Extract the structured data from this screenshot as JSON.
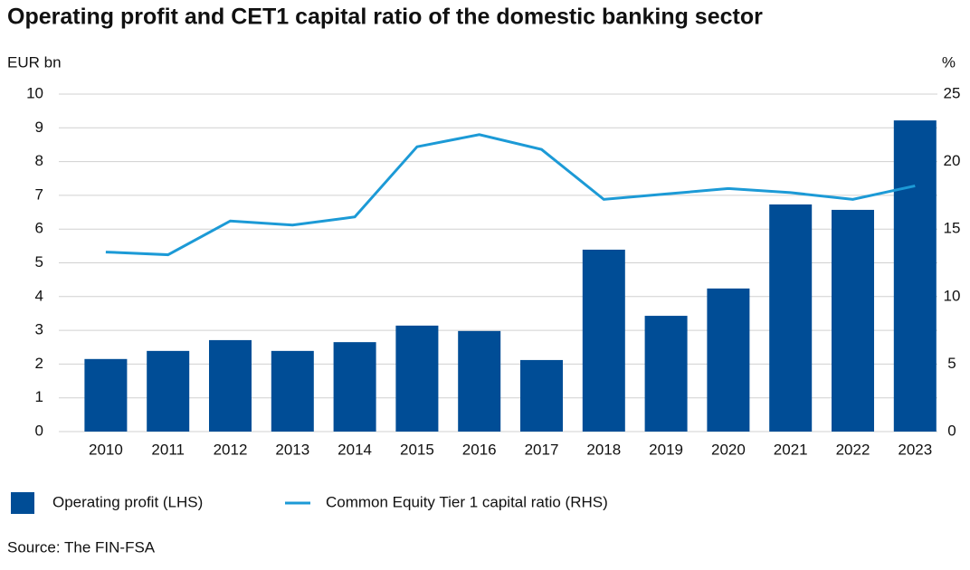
{
  "chart_data": {
    "type": "bar-line",
    "title": "Operating profit and CET1 capital ratio of the domestic banking sector",
    "y_label": "EUR bn",
    "y2_label": "%",
    "categories": [
      "2010",
      "2011",
      "2012",
      "2013",
      "2014",
      "2015",
      "2016",
      "2017",
      "2018",
      "2019",
      "2020",
      "2021",
      "2022",
      "2023"
    ],
    "series": [
      {
        "name": "Operating profit (LHS)",
        "type": "bar",
        "color": "#004d96",
        "values": [
          2.15,
          2.39,
          2.71,
          2.39,
          2.65,
          3.14,
          2.98,
          2.12,
          5.39,
          3.43,
          4.24,
          6.73,
          6.57,
          9.22
        ]
      },
      {
        "name": "Common Equity Tier 1 capital ratio (RHS)",
        "type": "line",
        "axis": "y2",
        "color": "#1c9ad6",
        "values": [
          13.3,
          13.1,
          15.6,
          15.3,
          15.9,
          21.1,
          22.0,
          20.9,
          17.2,
          17.6,
          18.0,
          17.7,
          17.2,
          18.2
        ]
      }
    ],
    "ylim": [
      0,
      10
    ],
    "yticks": [
      0,
      1,
      2,
      3,
      4,
      5,
      6,
      7,
      8,
      9,
      10
    ],
    "y2lim": [
      0,
      25
    ],
    "y2ticks": [
      0,
      5,
      10,
      15,
      20,
      25
    ],
    "grid": true,
    "source": "Source: The FIN-FSA"
  }
}
